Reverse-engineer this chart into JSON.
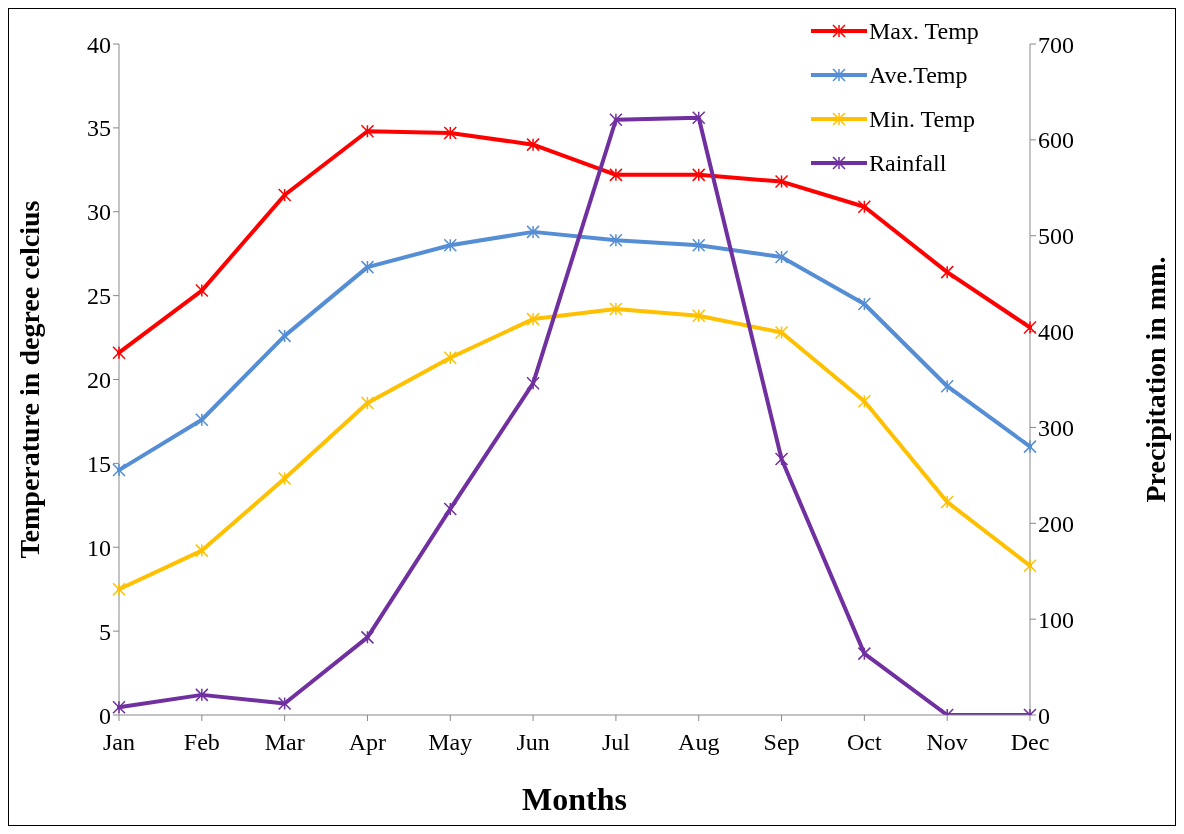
{
  "chart_data": {
    "type": "line",
    "xlabel": "Months",
    "ylabel": "Temperature in degree celcius",
    "y2label": "Precipitation in mm.",
    "categories": [
      "Jan",
      "Feb",
      "Mar",
      "Apr",
      "May",
      "Jun",
      "Jul",
      "Aug",
      "Sep",
      "Oct",
      "Nov",
      "Dec"
    ],
    "series": [
      {
        "name": "Max. Temp",
        "color": "#ff0000",
        "values": [
          21.6,
          25.3,
          31.0,
          34.8,
          34.7,
          34.0,
          32.2,
          32.2,
          31.8,
          30.3,
          26.4,
          23.1
        ]
      },
      {
        "name": "Ave.Temp",
        "color": "#558ed5",
        "values": [
          14.6,
          17.6,
          22.6,
          26.7,
          28.0,
          28.8,
          28.3,
          28.0,
          27.3,
          24.5,
          19.6,
          16.0
        ]
      },
      {
        "name": "Min. Temp",
        "color": "#ffc000",
        "values": [
          7.5,
          9.8,
          14.1,
          18.6,
          21.3,
          23.6,
          24.2,
          23.8,
          22.8,
          18.7,
          12.7,
          8.9
        ]
      },
      {
        "name": "Rainfall",
        "color": "#7030a0",
        "axis": "y2",
        "values": [
          8,
          21,
          12,
          81,
          215,
          346,
          621,
          623,
          267,
          64,
          0,
          0
        ]
      }
    ],
    "ylim": [
      0,
      40
    ],
    "yticks": [
      0,
      5,
      10,
      15,
      20,
      25,
      30,
      35,
      40
    ],
    "y2lim": [
      0,
      700
    ],
    "y2ticks": [
      0,
      100,
      200,
      300,
      400,
      500,
      600,
      700
    ],
    "grid": false,
    "legend": "top right",
    "marker": "cross",
    "line_style": "solid"
  }
}
